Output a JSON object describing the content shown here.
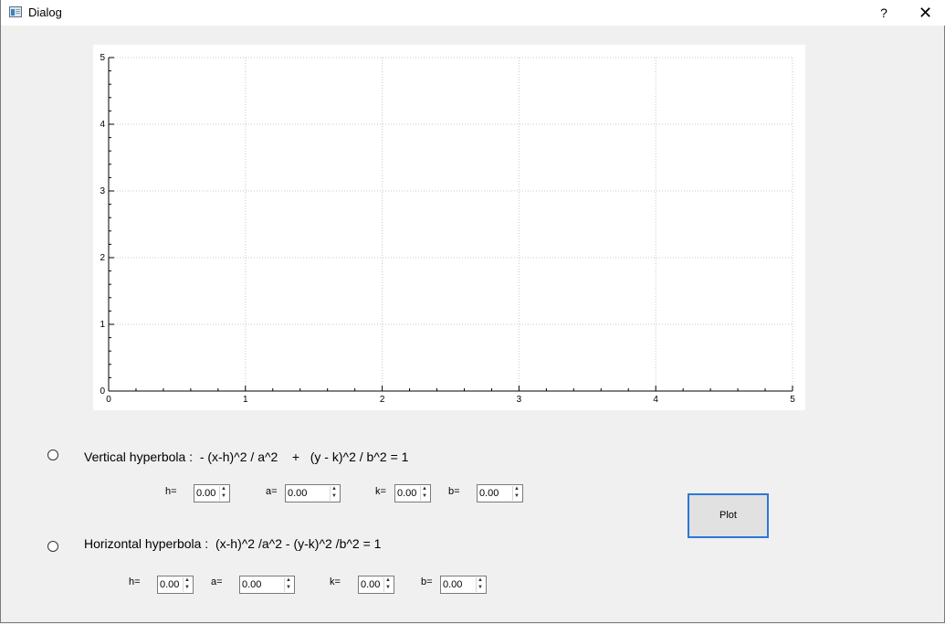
{
  "window": {
    "title": "Dialog",
    "help_label": "?",
    "close_label": "✕",
    "icon": "dialog-app-icon"
  },
  "plot": {
    "x_ticks": [
      "0",
      "1",
      "2",
      "3",
      "4",
      "5"
    ],
    "y_ticks": [
      "0",
      "1",
      "2",
      "3",
      "4",
      "5"
    ],
    "xlim": [
      0,
      5
    ],
    "ylim": [
      0,
      5
    ],
    "grid": true
  },
  "vertical": {
    "label": "Vertical hyperbola :  - (x-h)^2 / a^2    +   (y - k)^2 / b^2 = 1",
    "h_label": "h=",
    "h_value": "0.00",
    "a_label": "a=",
    "a_value": "0.00",
    "k_label": "k=",
    "k_value": "0.00",
    "b_label": "b=",
    "b_value": "0.00"
  },
  "horizontal": {
    "label": "Horizontal hyperbola :  (x-h)^2 /a^2 - (y-k)^2 /b^2 = 1",
    "h_label": "h=",
    "h_value": "0.00",
    "a_label": "a=",
    "a_value": "0.00",
    "k_label": "k=",
    "k_value": "0.00",
    "b_label": "b=",
    "b_value": "0.00"
  },
  "plot_button": {
    "label": "Plot"
  },
  "spin_arrows": {
    "up": "▲",
    "down": "▼"
  }
}
